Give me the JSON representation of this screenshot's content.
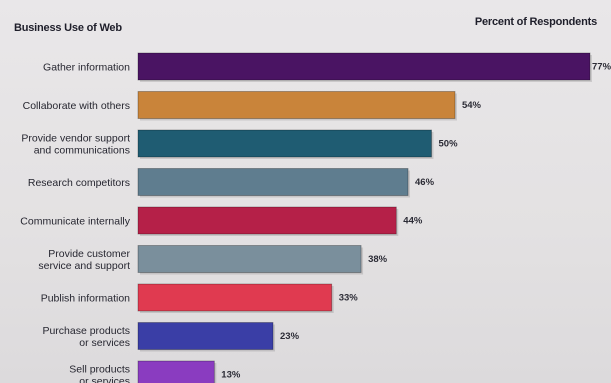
{
  "header": {
    "left_title": "Business Use of Web",
    "right_title": "Percent of Respondents"
  },
  "chart_data": {
    "type": "bar",
    "orientation": "horizontal",
    "title": "Business Use of Web",
    "value_axis_label": "Percent of Respondents",
    "unit": "%",
    "xlim": [
      0,
      77
    ],
    "grid": false,
    "legend": "none",
    "categories": [
      [
        "Gather information"
      ],
      [
        "Collaborate with others"
      ],
      [
        "Provide vendor support",
        "and communications"
      ],
      [
        "Research competitors"
      ],
      [
        "Communicate internally"
      ],
      [
        "Provide customer",
        "service and support"
      ],
      [
        "Publish information"
      ],
      [
        "Purchase products",
        "or services"
      ],
      [
        "Sell products",
        "or services"
      ]
    ],
    "values": [
      77,
      54,
      50,
      46,
      44,
      38,
      33,
      23,
      13
    ],
    "value_labels": [
      "77%",
      "54%",
      "50%",
      "46%",
      "44%",
      "38%",
      "33%",
      "23%",
      "13%"
    ],
    "colors": [
      "#4a1463",
      "#c9843a",
      "#1f5c72",
      "#5f7d8f",
      "#b52048",
      "#7a8f9c",
      "#e03a50",
      "#3a3ea6",
      "#8a3cc0"
    ]
  }
}
